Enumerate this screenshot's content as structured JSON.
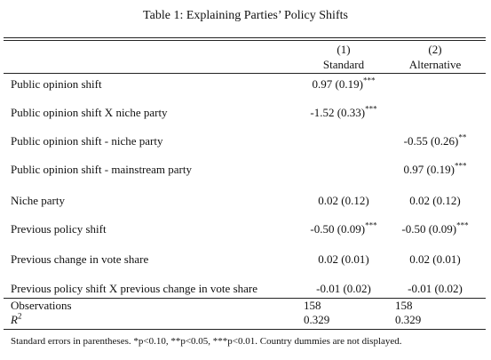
{
  "table": {
    "title": "Table 1: Explaining Parties’ Policy Shifts",
    "columns": [
      {
        "number": "(1)",
        "name": "Standard"
      },
      {
        "number": "(2)",
        "name": "Alternative"
      }
    ],
    "rows": [
      {
        "label": "Public opinion shift",
        "cells": [
          {
            "value": "0.97 (0.19)",
            "sig": "***"
          },
          null
        ]
      },
      {
        "label": "Public opinion shift X niche party",
        "cells": [
          {
            "value": "-1.52 (0.33)",
            "sig": "***"
          },
          null
        ]
      },
      {
        "label": "Public opinion shift - niche party",
        "cells": [
          null,
          {
            "value": "-0.55 (0.26)",
            "sig": "**"
          }
        ]
      },
      {
        "label": "Public opinion shift - mainstream party",
        "cells": [
          null,
          {
            "value": "0.97 (0.19)",
            "sig": "***"
          }
        ]
      },
      {
        "label": "Niche party",
        "cells": [
          {
            "value": "0.02 (0.12)"
          },
          {
            "value": "0.02 (0.12)"
          }
        ]
      },
      {
        "label": "Previous policy shift",
        "cells": [
          {
            "value": "-0.50 (0.09)",
            "sig": "***"
          },
          {
            "value": "-0.50 (0.09)",
            "sig": "***"
          }
        ]
      },
      {
        "label": "Previous change in vote share",
        "cells": [
          {
            "value": "0.02 (0.01)"
          },
          {
            "value": "0.02 (0.01)"
          }
        ]
      },
      {
        "label": "Previous policy shift X previous change in vote share",
        "cells": [
          {
            "value": "-0.01 (0.02)"
          },
          {
            "value": "-0.01 (0.02)"
          }
        ]
      }
    ],
    "stats": [
      {
        "label": "Observations",
        "cells": [
          "158",
          "158"
        ]
      },
      {
        "label": "R",
        "label_sup": "2",
        "cells": [
          "0.329",
          "0.329"
        ]
      }
    ],
    "note": "Standard errors in parentheses. *p<0.10, **p<0.05, ***p<0.01. Country dummies are not displayed."
  }
}
